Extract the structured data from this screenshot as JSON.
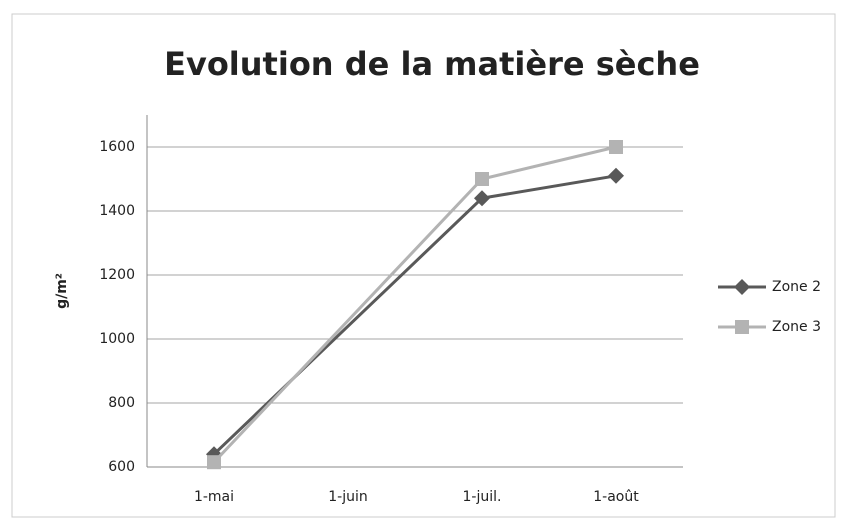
{
  "chart_data": {
    "type": "line",
    "title": "Evolution de la matière sèche",
    "y_label": "g/m²",
    "categories": [
      "1-mai",
      "1-juin",
      "1-juil.",
      "1-août"
    ],
    "series": [
      {
        "name": "Zone 2",
        "color": "#595959",
        "marker": "diamond",
        "values": [
          640,
          null,
          1440,
          1510
        ]
      },
      {
        "name": "Zone 3",
        "color": "#b3b3b3",
        "marker": "square",
        "values": [
          615,
          null,
          1500,
          1600
        ]
      }
    ],
    "connect_gaps": true,
    "ylim": [
      600,
      1700
    ],
    "yticks": [
      600,
      800,
      1000,
      1200,
      1400,
      1600
    ],
    "grid": true,
    "legend": "right"
  }
}
